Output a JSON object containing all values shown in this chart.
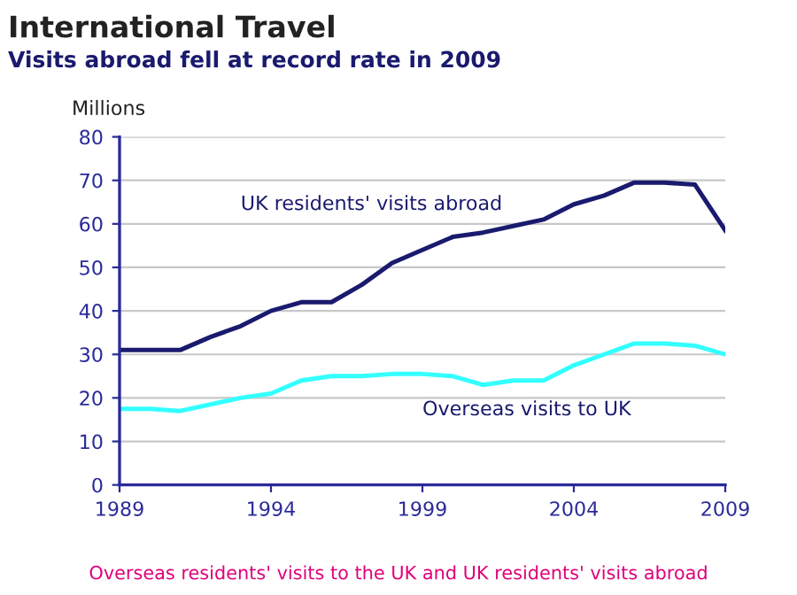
{
  "chart_data": {
    "type": "line",
    "title": "International Travel",
    "subtitle": "Visits abroad fell at record rate in 2009",
    "ylabel": "Millions",
    "x": [
      1989,
      1990,
      1991,
      1992,
      1993,
      1994,
      1995,
      1996,
      1997,
      1998,
      1999,
      2000,
      2001,
      2002,
      2003,
      2004,
      2005,
      2006,
      2007,
      2008,
      2009
    ],
    "series": [
      {
        "name": "UK residents' visits abroad",
        "color": "#1a1a6e",
        "values": [
          31,
          31,
          31,
          34,
          36.5,
          40,
          42,
          42,
          46,
          51,
          54,
          57,
          58,
          59.5,
          61,
          64.5,
          66.5,
          69.5,
          69.5,
          69,
          58.5
        ]
      },
      {
        "name": "Overseas visits to UK",
        "color": "#33ffff",
        "values": [
          17.5,
          17.5,
          17,
          18.5,
          20,
          21,
          24,
          25,
          25,
          25.5,
          25.5,
          25,
          23,
          24,
          24,
          27.5,
          30,
          32.5,
          32.5,
          32,
          30
        ]
      }
    ],
    "xlim": [
      1989,
      2009
    ],
    "xticks": [
      1989,
      1994,
      1999,
      2004,
      2009
    ],
    "ylim": [
      0,
      80
    ],
    "yticks": [
      0,
      10,
      20,
      30,
      40,
      50,
      60,
      70,
      80
    ],
    "grid": "y",
    "legend": false,
    "marker": "none",
    "line_style": "solid",
    "annotations": [
      "Overseas residents' visits to the UK and UK residents' visits abroad"
    ]
  }
}
